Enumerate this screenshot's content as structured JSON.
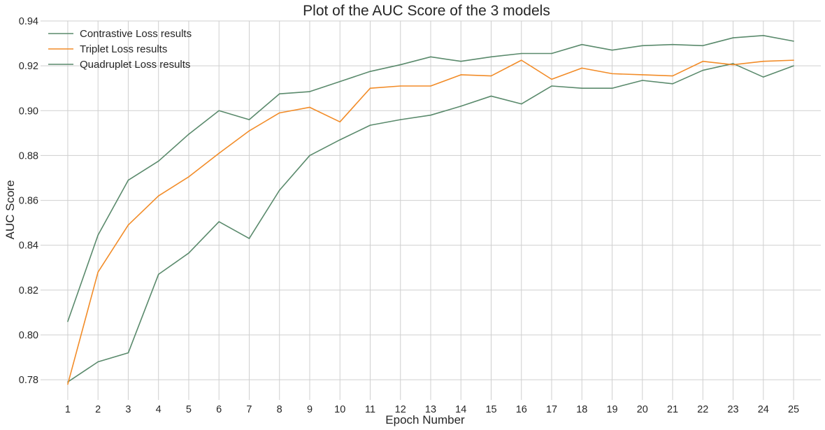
{
  "chart_data": {
    "type": "line",
    "title": "Plot of the AUC Score of the 3 models",
    "xlabel": "Epoch Number",
    "ylabel": "AUC Score",
    "x": [
      1,
      2,
      3,
      4,
      5,
      6,
      7,
      8,
      9,
      10,
      11,
      12,
      13,
      14,
      15,
      16,
      17,
      18,
      19,
      20,
      21,
      22,
      23,
      24,
      25
    ],
    "xlim": [
      0.1,
      25.9
    ],
    "ylim": [
      0.771,
      0.94
    ],
    "yticks": [
      0.78,
      0.8,
      0.82,
      0.84,
      0.86,
      0.88,
      0.9,
      0.92,
      0.94
    ],
    "ytick_labels": [
      "0.78",
      "0.80",
      "0.82",
      "0.84",
      "0.86",
      "0.88",
      "0.90",
      "0.92",
      "0.94"
    ],
    "grid": true,
    "legend_position": "top-left",
    "series": [
      {
        "name": "Contrastive Loss results",
        "color": "#5a8a6c",
        "values": [
          0.779,
          0.788,
          0.792,
          0.827,
          0.8365,
          0.8505,
          0.843,
          0.8645,
          0.88,
          0.887,
          0.8935,
          0.896,
          0.898,
          0.902,
          0.9065,
          0.903,
          0.911,
          0.91,
          0.91,
          0.9135,
          0.912,
          0.918,
          0.921,
          0.915,
          0.92
        ]
      },
      {
        "name": "Triplet Loss results",
        "color": "#f28c28",
        "values": [
          0.778,
          0.828,
          0.849,
          0.862,
          0.8705,
          0.881,
          0.891,
          0.899,
          0.9015,
          0.895,
          0.91,
          0.911,
          0.911,
          0.916,
          0.9155,
          0.9225,
          0.914,
          0.919,
          0.9165,
          0.916,
          0.9155,
          0.922,
          0.9205,
          0.922,
          0.9225
        ]
      },
      {
        "name": "Quadruplet Loss results",
        "color": "#5a8a6c",
        "values": [
          0.806,
          0.8445,
          0.869,
          0.8775,
          0.8895,
          0.9,
          0.896,
          0.9075,
          0.9085,
          0.913,
          0.9175,
          0.9205,
          0.924,
          0.922,
          0.924,
          0.9255,
          0.9255,
          0.9295,
          0.927,
          0.929,
          0.9295,
          0.929,
          0.9325,
          0.9335,
          0.931
        ]
      }
    ]
  }
}
